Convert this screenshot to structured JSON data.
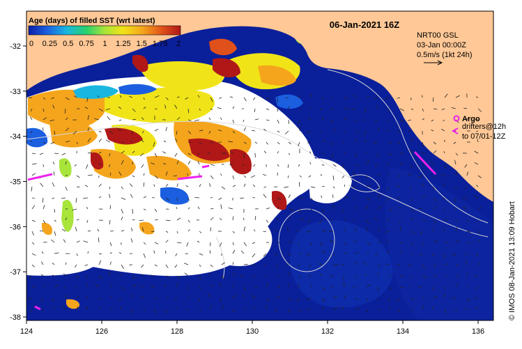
{
  "title": "06-Jan-2021 16Z",
  "colorbar": {
    "label": "Age (days) of filled SST (wrt latest)",
    "ticks": [
      "0",
      "0.25",
      "0.5",
      "0.75",
      "1",
      "1.25",
      "1.5",
      "1.75",
      "2"
    ],
    "colors": [
      "#0a1fa8",
      "#1b5ee0",
      "#19b6e0",
      "#27d06c",
      "#a8e43a",
      "#f0e418",
      "#f5a51c",
      "#e0501a",
      "#b01818"
    ]
  },
  "axes": {
    "lon_ticks": [
      "124",
      "126",
      "128",
      "130",
      "132",
      "134",
      "136"
    ],
    "lat_ticks": [
      "-32",
      "-33",
      "-34",
      "-35",
      "-36",
      "-37",
      "-38"
    ]
  },
  "info": {
    "line1": "NRT00 GSL",
    "line2": "03-Jan 00:00Z",
    "line3": "0.5m/s (1kt 24h)"
  },
  "argo": {
    "label": "Argo",
    "drifters_line1": "drifters@12h",
    "drifters_line2": "to 07/01-12Z",
    "color": "#ee22ee"
  },
  "credit": "© IMOS 08-Jan-2021 13:09 Hobart",
  "colors": {
    "land": "#ffc896",
    "ocean_deep": "#0a1f9a",
    "ocean_mid": "#1a3fc0",
    "cloud": "#ffffff"
  }
}
